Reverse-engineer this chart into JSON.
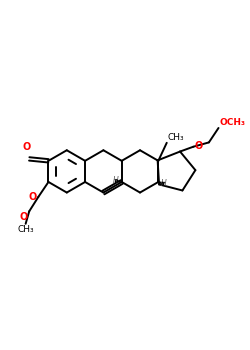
{
  "bg_color": "#ffffff",
  "bond_color": "#000000",
  "o_color": "#ff0000",
  "line_width": 1.4,
  "fig_width": 2.5,
  "fig_height": 3.5,
  "dpi": 100,
  "xlim": [
    0,
    10
  ],
  "ylim": [
    0,
    14
  ]
}
